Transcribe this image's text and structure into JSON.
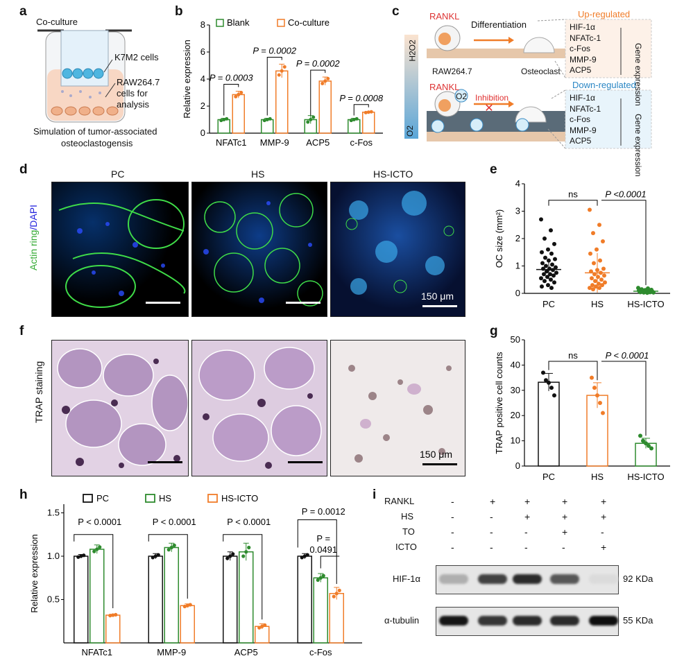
{
  "panels": {
    "a": {
      "label": "a",
      "coculture": "Co-culture",
      "k7m2": "K7M2 cells",
      "raw1": "RAW264.7",
      "raw2": "cells for",
      "raw3": "analysis",
      "cap1": "Simulation of tumor-associated",
      "cap2": "osteoclastogensis"
    },
    "b": {
      "label": "b"
    },
    "c": {
      "label": "c",
      "rankl": "RANKL",
      "differentiation": "Differentiation",
      "raw": "RAW264.7",
      "osteoclast": "Osteoclast",
      "h2o2": "H2O2",
      "o2": "O2",
      "up": "Up-regulated",
      "down": "Down-regulated",
      "inhibition": "Inhibition",
      "genes": [
        "HIF-1α",
        "NFATc-1",
        "c-Fos",
        "MMP-9",
        "ACP5"
      ],
      "gene_expr": "Gene expression"
    },
    "d": {
      "label": "d",
      "ylabel_a": "Actin ring",
      "ylabel_b": "/DAPI",
      "cols": [
        "PC",
        "HS",
        "HS-ICTO"
      ],
      "scale": "150 μm"
    },
    "e": {
      "label": "e"
    },
    "f": {
      "label": "f",
      "ylabel": "TRAP staining",
      "scale": "150 μm"
    },
    "g": {
      "label": "g"
    },
    "h": {
      "label": "h"
    },
    "i": {
      "label": "i",
      "rows": [
        {
          "name": "RANKL",
          "vals": [
            "-",
            "+",
            "+",
            "+",
            "+"
          ]
        },
        {
          "name": "HS",
          "vals": [
            "-",
            "-",
            "+",
            "+",
            "+"
          ]
        },
        {
          "name": "TO",
          "vals": [
            "-",
            "-",
            "-",
            "+",
            "-"
          ]
        },
        {
          "name": "ICTO",
          "vals": [
            "-",
            "-",
            "-",
            "-",
            "+"
          ]
        }
      ],
      "bands": [
        {
          "name": "HIF-1α",
          "kda": "92 KDa",
          "intensity": [
            0.25,
            0.75,
            0.85,
            0.65,
            0.05
          ]
        },
        {
          "name": "α-tubulin",
          "kda": "55 KDa",
          "intensity": [
            0.95,
            0.8,
            0.85,
            0.85,
            0.98
          ]
        }
      ]
    }
  },
  "chart_data": [
    {
      "id": "b",
      "type": "bar",
      "ylabel": "Relative expression",
      "ylim": [
        0,
        8
      ],
      "yticks": [
        0,
        2,
        4,
        6,
        8
      ],
      "categories": [
        "NFATc1",
        "MMP-9",
        "ACP5",
        "c-Fos"
      ],
      "series": [
        {
          "name": "Blank",
          "color": "#2e8b2e",
          "values": [
            1.0,
            1.0,
            1.0,
            1.0
          ],
          "err": [
            0.1,
            0.1,
            0.3,
            0.1
          ]
        },
        {
          "name": "Co-culture",
          "color": "#f07c28",
          "values": [
            2.85,
            4.6,
            3.85,
            1.55
          ],
          "err": [
            0.25,
            0.5,
            0.3,
            0.05
          ]
        }
      ],
      "annotations": [
        "P = 0.0003",
        "P = 0.0002",
        "P = 0.0002",
        "P = 0.0008"
      ]
    },
    {
      "id": "e",
      "type": "scatter",
      "ylabel": "OC size (mm²)",
      "ylim": [
        0,
        4
      ],
      "yticks": [
        0,
        1,
        2,
        3,
        4
      ],
      "categories": [
        "PC",
        "HS",
        "HS-ICTO"
      ],
      "colors": [
        "#111111",
        "#f07c28",
        "#2e8b2e"
      ],
      "means": [
        0.87,
        0.75,
        0.08
      ],
      "sd": [
        0.35,
        0.72,
        0.04
      ],
      "points": [
        [
          2.7,
          2.3,
          2.0,
          1.8,
          1.6,
          1.5,
          1.45,
          1.3,
          1.25,
          1.2,
          1.1,
          1.05,
          1.0,
          0.95,
          0.9,
          0.9,
          0.85,
          0.8,
          0.75,
          0.7,
          0.7,
          0.65,
          0.6,
          0.55,
          0.5,
          0.45,
          0.4,
          0.3,
          0.25,
          0.2
        ],
        [
          3.05,
          2.5,
          2.2,
          1.9,
          1.6,
          1.45,
          1.2,
          1.1,
          0.9,
          0.85,
          0.8,
          0.75,
          0.7,
          0.65,
          0.6,
          0.55,
          0.5,
          0.45,
          0.4,
          0.35,
          0.3,
          0.3,
          0.25,
          0.2,
          0.2,
          0.15
        ],
        [
          0.2,
          0.18,
          0.15,
          0.13,
          0.12,
          0.1,
          0.1,
          0.09,
          0.08,
          0.08,
          0.07,
          0.06,
          0.06,
          0.05,
          0.05,
          0.04,
          0.04,
          0.03,
          0.03,
          0.02
        ]
      ],
      "annotations": [
        "ns",
        "P <0.0001"
      ]
    },
    {
      "id": "g",
      "type": "bar",
      "ylabel": "TRAP positive cell counts",
      "ylim": [
        0,
        50
      ],
      "yticks": [
        0,
        10,
        20,
        30,
        40,
        50
      ],
      "categories": [
        "PC",
        "HS",
        "HS-ICTO"
      ],
      "colors": [
        "#111111",
        "#f07c28",
        "#2e8b2e"
      ],
      "values": [
        33.2,
        28.0,
        9.0
      ],
      "err": [
        3.5,
        5.0,
        2.0
      ],
      "points": [
        [
          37,
          34,
          33,
          31,
          28
        ],
        [
          35,
          31,
          28,
          25,
          21
        ],
        [
          12,
          10,
          9,
          8,
          7
        ]
      ],
      "annotations": [
        "ns",
        "P < 0.0001"
      ]
    },
    {
      "id": "h",
      "type": "bar",
      "ylabel": "Relative expression",
      "ylim": [
        0,
        1.6
      ],
      "yticks": [
        0.5,
        1.0,
        1.5
      ],
      "categories": [
        "NFATc1",
        "MMP-9",
        "ACP5",
        "c-Fos"
      ],
      "series": [
        {
          "name": "PC",
          "color": "#111111",
          "values": [
            1.0,
            1.0,
            1.0,
            1.0
          ],
          "err": [
            0.02,
            0.03,
            0.05,
            0.03
          ]
        },
        {
          "name": "HS",
          "color": "#2e8b2e",
          "values": [
            1.08,
            1.1,
            1.05,
            0.75
          ],
          "err": [
            0.05,
            0.05,
            0.1,
            0.05
          ]
        },
        {
          "name": "HS-ICTO",
          "color": "#f07c28",
          "values": [
            0.32,
            0.43,
            0.19,
            0.57
          ],
          "err": [
            0.01,
            0.02,
            0.03,
            0.07
          ]
        }
      ],
      "annotations": [
        "P < 0.0001",
        "P < 0.0001",
        "P < 0.0001",
        "P = 0.0012",
        "P =",
        "0.0491"
      ]
    }
  ]
}
